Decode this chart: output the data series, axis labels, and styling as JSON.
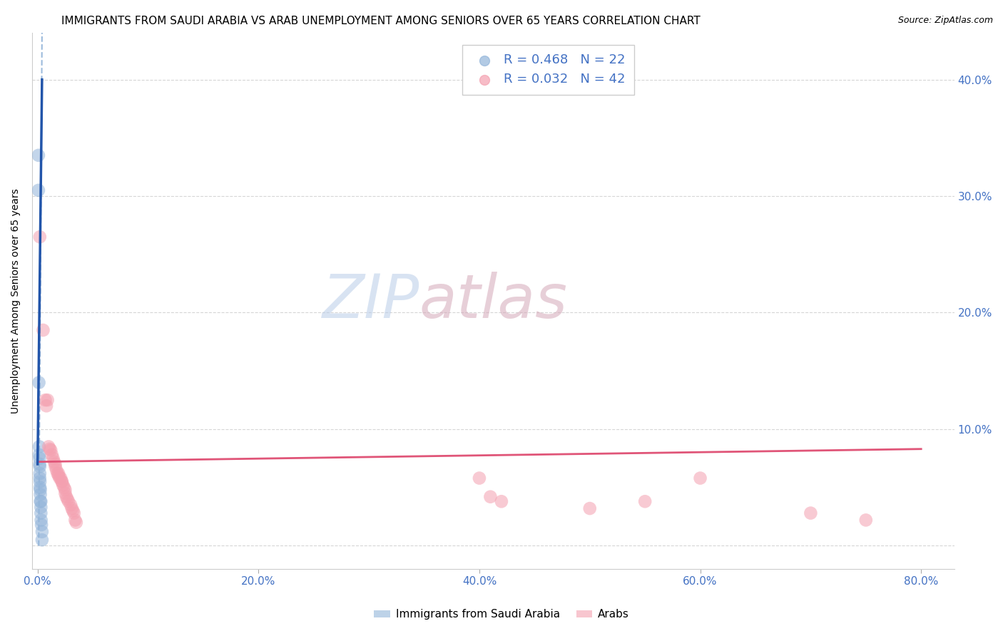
{
  "title": "IMMIGRANTS FROM SAUDI ARABIA VS ARAB UNEMPLOYMENT AMONG SENIORS OVER 65 YEARS CORRELATION CHART",
  "source": "Source: ZipAtlas.com",
  "ylabel": "Unemployment Among Seniors over 65 years",
  "watermark_zip": "ZIP",
  "watermark_atlas": "atlas",
  "xlim": [
    -0.005,
    0.83
  ],
  "ylim": [
    -0.02,
    0.44
  ],
  "xticks": [
    0.0,
    0.2,
    0.4,
    0.6,
    0.8
  ],
  "xtick_labels": [
    "0.0%",
    "20.0%",
    "40.0%",
    "60.0%",
    "80.0%"
  ],
  "yticks": [
    0.0,
    0.1,
    0.2,
    0.3,
    0.4
  ],
  "ytick_labels_right": [
    "",
    "10.0%",
    "20.0%",
    "30.0%",
    "40.0%"
  ],
  "blue_R": 0.468,
  "blue_N": 22,
  "pink_R": 0.032,
  "pink_N": 42,
  "blue_color": "#92B4D9",
  "pink_color": "#F4A0B0",
  "blue_line_color": "#2255AA",
  "blue_dash_color": "#92B4D9",
  "pink_line_color": "#E05578",
  "blue_scatter": [
    [
      0.0008,
      0.335
    ],
    [
      0.0008,
      0.305
    ],
    [
      0.0012,
      0.14
    ],
    [
      0.0015,
      0.085
    ],
    [
      0.0015,
      0.078
    ],
    [
      0.0018,
      0.075
    ],
    [
      0.0018,
      0.07
    ],
    [
      0.002,
      0.068
    ],
    [
      0.002,
      0.062
    ],
    [
      0.002,
      0.058
    ],
    [
      0.0022,
      0.055
    ],
    [
      0.0022,
      0.05
    ],
    [
      0.0025,
      0.048
    ],
    [
      0.0025,
      0.044
    ],
    [
      0.0025,
      0.038
    ],
    [
      0.003,
      0.038
    ],
    [
      0.003,
      0.033
    ],
    [
      0.003,
      0.028
    ],
    [
      0.0032,
      0.022
    ],
    [
      0.0035,
      0.018
    ],
    [
      0.004,
      0.012
    ],
    [
      0.004,
      0.005
    ]
  ],
  "pink_scatter": [
    [
      0.002,
      0.265
    ],
    [
      0.005,
      0.185
    ],
    [
      0.007,
      0.125
    ],
    [
      0.008,
      0.12
    ],
    [
      0.009,
      0.125
    ],
    [
      0.01,
      0.085
    ],
    [
      0.011,
      0.083
    ],
    [
      0.012,
      0.082
    ],
    [
      0.013,
      0.078
    ],
    [
      0.014,
      0.075
    ],
    [
      0.015,
      0.072
    ],
    [
      0.016,
      0.07
    ],
    [
      0.016,
      0.068
    ],
    [
      0.017,
      0.065
    ],
    [
      0.018,
      0.062
    ],
    [
      0.019,
      0.062
    ],
    [
      0.019,
      0.06
    ],
    [
      0.02,
      0.058
    ],
    [
      0.021,
      0.058
    ],
    [
      0.022,
      0.055
    ],
    [
      0.022,
      0.055
    ],
    [
      0.023,
      0.052
    ],
    [
      0.024,
      0.05
    ],
    [
      0.025,
      0.048
    ],
    [
      0.025,
      0.045
    ],
    [
      0.026,
      0.042
    ],
    [
      0.027,
      0.04
    ],
    [
      0.028,
      0.038
    ],
    [
      0.03,
      0.035
    ],
    [
      0.031,
      0.032
    ],
    [
      0.032,
      0.03
    ],
    [
      0.033,
      0.028
    ],
    [
      0.034,
      0.022
    ],
    [
      0.035,
      0.02
    ],
    [
      0.4,
      0.058
    ],
    [
      0.41,
      0.042
    ],
    [
      0.42,
      0.038
    ],
    [
      0.5,
      0.032
    ],
    [
      0.55,
      0.038
    ],
    [
      0.6,
      0.058
    ],
    [
      0.7,
      0.028
    ],
    [
      0.75,
      0.022
    ]
  ],
  "background_color": "#FFFFFF",
  "grid_color": "#CCCCCC"
}
